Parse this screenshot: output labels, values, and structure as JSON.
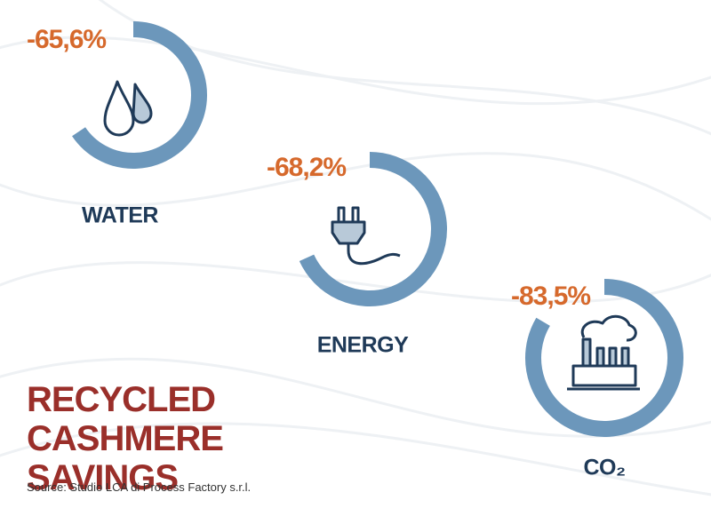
{
  "chart_data": {
    "type": "gauge",
    "title": "RECYCLED CASHMERE SAVINGS",
    "source": "Source: Studio LCA di Process Factory s.r.l.",
    "categories": [
      "WATER",
      "ENERGY",
      "CO₂"
    ],
    "values": [
      -65.6,
      -68.2,
      -83.5
    ],
    "value_labels": [
      "-65,6%",
      "-68,2%",
      "-83,5%"
    ],
    "color": "#6c97bb"
  }
}
